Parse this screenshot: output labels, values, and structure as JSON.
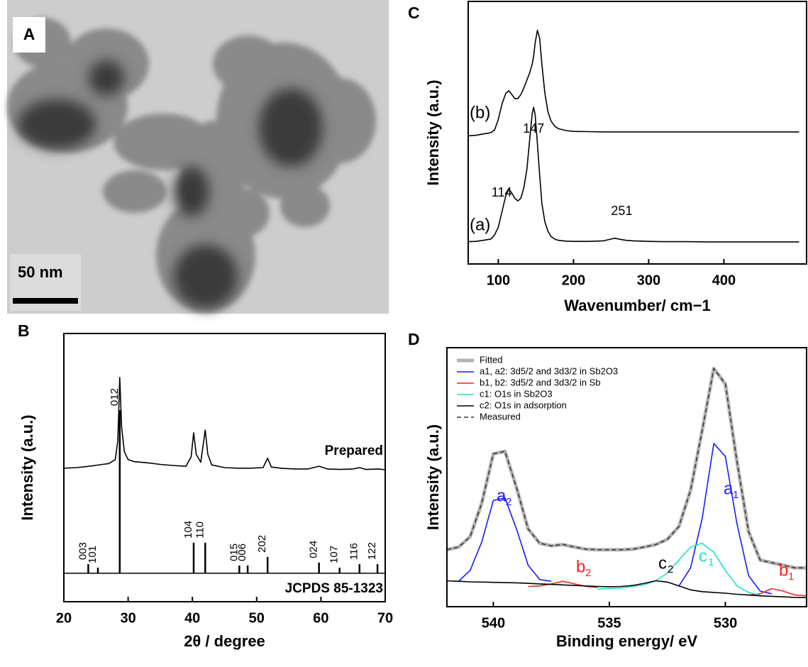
{
  "image": {
    "label": "A",
    "scale_bar": "50 nm"
  },
  "chart_data": [
    {
      "type": "line",
      "panel": "B",
      "xlabel": "2θ / degree",
      "ylabel": "Intensity (a.u.)",
      "xlim": [
        20,
        70
      ],
      "xticks": [
        20,
        30,
        40,
        50,
        60,
        70
      ],
      "ylim": [
        0,
        10
      ],
      "series": [
        {
          "name": "Prepared",
          "color": "#000000",
          "style": "solid",
          "x": [
            20,
            22,
            24,
            26,
            27,
            28,
            28.4,
            28.7,
            29.0,
            29.4,
            30,
            31,
            33,
            35,
            37,
            39,
            39.8,
            40.2,
            40.6,
            41.3,
            42.0,
            42.4,
            43,
            45,
            47,
            49,
            51,
            51.7,
            52.3,
            54,
            56,
            58,
            59.7,
            61,
            63,
            65,
            66,
            67,
            69,
            70
          ],
          "values": [
            4.98,
            5.0,
            5.05,
            5.12,
            5.15,
            5.3,
            6.0,
            8.36,
            6.5,
            5.6,
            5.3,
            5.22,
            5.18,
            5.12,
            5.08,
            5.05,
            5.4,
            6.3,
            5.5,
            5.2,
            6.4,
            5.5,
            5.1,
            5.0,
            4.98,
            4.98,
            5.0,
            5.35,
            5.02,
            4.97,
            4.95,
            4.95,
            5.05,
            4.95,
            4.93,
            4.95,
            5.0,
            4.93,
            4.95,
            4.92
          ]
        },
        {
          "name": "JCPDS 85-1323",
          "color": "#000000",
          "style": "stick",
          "baseline": 1.06,
          "x": [
            23.8,
            25.3,
            28.7,
            40.2,
            42.0,
            47.3,
            48.6,
            51.7,
            59.7,
            62.9,
            66.0,
            68.8
          ],
          "values": [
            1.4,
            1.27,
            7.14,
            2.2,
            2.2,
            1.35,
            1.35,
            1.67,
            1.46,
            1.27,
            1.4,
            1.4
          ],
          "labels": [
            "003",
            "101",
            "012",
            "104",
            "110",
            "015",
            "006",
            "202",
            "024",
            "107",
            "116",
            "122"
          ]
        }
      ]
    },
    {
      "type": "line",
      "panel": "C",
      "xlabel": "Wavenumber/ cm−1",
      "ylabel": "Intensity (a.u.)",
      "xlim": [
        60,
        510
      ],
      "xticks": [
        100,
        200,
        300,
        400
      ],
      "ylim": [
        0,
        10
      ],
      "x": [
        60,
        70,
        80,
        90,
        95,
        100,
        105,
        110,
        114,
        118,
        122,
        126,
        130,
        134,
        138,
        142,
        145,
        147,
        149,
        152,
        155,
        158,
        162,
        166,
        170,
        175,
        180,
        190,
        200,
        220,
        240,
        250,
        255,
        260,
        270,
        280,
        300,
        320,
        350,
        380,
        420,
        460,
        500
      ],
      "series": [
        {
          "name": "(a)",
          "color": "#000000",
          "style": "solid",
          "values": [
            0.85,
            0.86,
            0.9,
            0.95,
            1.1,
            1.4,
            2.0,
            2.6,
            2.85,
            2.7,
            2.5,
            2.4,
            2.5,
            2.9,
            3.6,
            4.8,
            5.7,
            5.97,
            5.7,
            4.6,
            3.4,
            2.3,
            1.6,
            1.25,
            1.05,
            0.95,
            0.9,
            0.87,
            0.86,
            0.86,
            0.88,
            0.95,
            0.98,
            0.95,
            0.9,
            0.88,
            0.86,
            0.85,
            0.85,
            0.84,
            0.84,
            0.84,
            0.84
          ]
        },
        {
          "name": "(b)",
          "color": "#000000",
          "style": "solid",
          "values": [
            4.88,
            4.9,
            4.95,
            5.0,
            5.1,
            5.5,
            6.1,
            6.5,
            6.6,
            6.45,
            6.3,
            6.3,
            6.45,
            6.7,
            7.0,
            7.3,
            7.6,
            7.9,
            8.4,
            8.9,
            8.6,
            7.6,
            6.5,
            5.8,
            5.45,
            5.25,
            5.15,
            5.08,
            5.05,
            5.04,
            5.03,
            5.03,
            5.03,
            5.03,
            5.03,
            5.03,
            5.03,
            5.03,
            5.03,
            5.03,
            5.03,
            5.03,
            5.03
          ]
        }
      ],
      "peak_labels": [
        114,
        147,
        251
      ]
    },
    {
      "type": "line",
      "panel": "D",
      "xlabel": "Binding energy/ eV",
      "ylabel": "Intensity (a.u.)",
      "xlim": [
        542,
        526.5
      ],
      "xticks": [
        540,
        535,
        530
      ],
      "ylim": [
        0,
        10
      ],
      "legend": "upper left",
      "x": [
        542,
        541.5,
        541,
        540.5,
        540,
        539.5,
        539,
        538.5,
        538,
        537.5,
        537,
        536.5,
        536,
        535.5,
        535,
        534.5,
        534,
        533.5,
        533,
        532.5,
        532,
        531.5,
        531,
        530.5,
        530,
        529.5,
        529,
        528.5,
        528,
        527.5,
        527,
        526.5
      ],
      "series": [
        {
          "name": "Fitted",
          "color": "#b4b4b4",
          "style": "thick",
          "values": [
            2.2,
            2.3,
            2.7,
            4.0,
            5.9,
            6.0,
            4.6,
            3.0,
            2.45,
            2.35,
            2.4,
            2.3,
            2.22,
            2.2,
            2.2,
            2.2,
            2.22,
            2.3,
            2.4,
            2.6,
            3.1,
            4.5,
            6.8,
            9.2,
            8.6,
            5.6,
            2.9,
            1.8,
            1.7,
            1.6,
            1.5,
            1.5
          ]
        },
        {
          "name": "a1, a2: 3d5/2 and 3d3/2 in Sb2O3",
          "color": "#1a1aff",
          "style": "solid",
          "values": [
            null,
            0.98,
            1.4,
            2.5,
            4.1,
            4.2,
            3.0,
            1.6,
            1.05,
            0.98,
            null,
            null,
            null,
            null,
            null,
            null,
            null,
            null,
            null,
            null,
            0.8,
            1.5,
            3.4,
            6.3,
            5.8,
            3.2,
            1.2,
            0.6,
            0.5,
            null,
            null,
            null
          ]
        },
        {
          "name": "b1, b2: 3d5/2 and 3d3/2 in Sb",
          "color": "#ff2020",
          "style": "solid",
          "values": [
            null,
            null,
            null,
            null,
            null,
            null,
            null,
            0.78,
            0.8,
            0.88,
            0.98,
            0.88,
            0.78,
            0.74,
            null,
            null,
            null,
            null,
            null,
            null,
            null,
            null,
            null,
            null,
            null,
            null,
            0.45,
            0.5,
            0.7,
            0.6,
            0.45,
            0.42
          ]
        },
        {
          "name": "c1: O1s in Sb2O3",
          "color": "#20e0c0",
          "style": "solid",
          "values": [
            null,
            null,
            null,
            null,
            null,
            null,
            null,
            null,
            null,
            null,
            null,
            null,
            null,
            0.68,
            0.7,
            0.72,
            0.78,
            0.85,
            1.0,
            1.3,
            1.8,
            2.3,
            2.45,
            2.1,
            1.4,
            0.8,
            0.55,
            0.45,
            null,
            null,
            null,
            null
          ]
        },
        {
          "name": "c2: O1s  in adsorption",
          "color": "#000000",
          "style": "solid",
          "values": [
            1.0,
            0.98,
            0.96,
            0.95,
            0.94,
            0.93,
            0.92,
            0.9,
            0.88,
            0.86,
            0.84,
            0.82,
            0.8,
            0.78,
            0.77,
            0.78,
            0.82,
            0.9,
            1.0,
            0.95,
            0.8,
            0.65,
            0.58,
            0.55,
            0.52,
            0.48,
            0.45,
            0.42,
            0.4,
            0.38,
            0.36,
            0.35
          ]
        },
        {
          "name": "Measured",
          "color": "#333333",
          "style": "dashed",
          "values": [
            2.2,
            2.3,
            2.7,
            4.0,
            5.9,
            6.0,
            4.6,
            3.0,
            2.45,
            2.35,
            2.4,
            2.3,
            2.22,
            2.2,
            2.2,
            2.2,
            2.22,
            2.3,
            2.4,
            2.6,
            3.1,
            4.5,
            6.8,
            9.2,
            8.6,
            5.6,
            2.9,
            1.8,
            1.7,
            1.6,
            1.5,
            1.5
          ]
        }
      ],
      "annotations": [
        {
          "text": "a",
          "sub": "2",
          "color": "#1a1aff"
        },
        {
          "text": "b",
          "sub": "2",
          "color": "#ff2020"
        },
        {
          "text": "c",
          "sub": "2",
          "color": "#000000"
        },
        {
          "text": "c",
          "sub": "1",
          "color": "#20e0c0"
        },
        {
          "text": "a",
          "sub": "1",
          "color": "#1a1aff"
        },
        {
          "text": "b",
          "sub": "1",
          "color": "#ff2020"
        }
      ]
    }
  ]
}
